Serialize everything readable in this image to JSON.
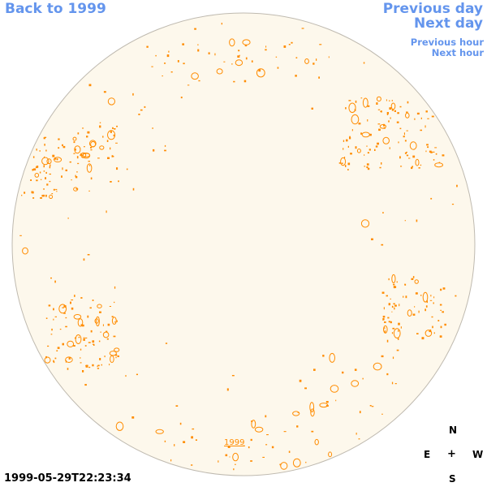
{
  "nav": {
    "back_label": "Back to 1999",
    "prev_day_label": "Previous day",
    "next_day_label": "Next day",
    "prev_hour_label": "Previous hour",
    "next_hour_label": "Next hour"
  },
  "disk": {
    "fill_color": "#fdf8ec",
    "border_color": "#bfbab0",
    "feature_color": "#ff8c00",
    "year_label": "1999"
  },
  "compass": {
    "north": "N",
    "east": "E",
    "center": "+",
    "west": "W",
    "south": "S"
  },
  "timestamp": "1999-05-29T22:23:34"
}
